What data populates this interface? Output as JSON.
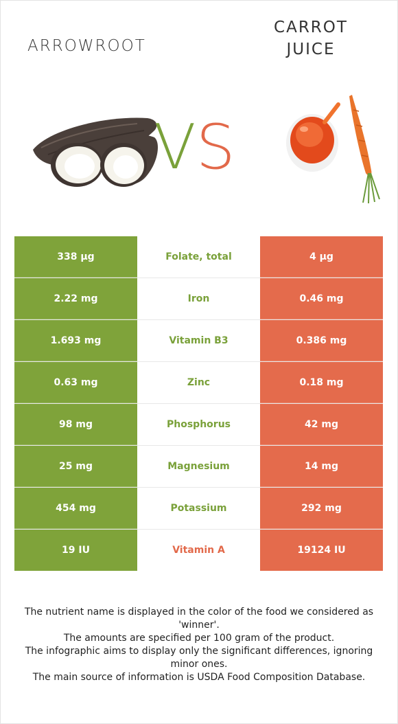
{
  "header": {
    "left_food": "ARROWROOT",
    "right_food_line1": "CARROT",
    "right_food_line2": "JUICE",
    "vs_v": "V",
    "vs_s": "S"
  },
  "colors": {
    "left_accent": "#7fa33a",
    "right_accent": "#e46b4c"
  },
  "rows": [
    {
      "left": "338 µg",
      "nutrient": "Folate, total",
      "right": "4 µg",
      "winner": "left"
    },
    {
      "left": "2.22 mg",
      "nutrient": "Iron",
      "right": "0.46 mg",
      "winner": "left"
    },
    {
      "left": "1.693 mg",
      "nutrient": "Vitamin B3",
      "right": "0.386 mg",
      "winner": "left"
    },
    {
      "left": "0.63 mg",
      "nutrient": "Zinc",
      "right": "0.18 mg",
      "winner": "left"
    },
    {
      "left": "98 mg",
      "nutrient": "Phosphorus",
      "right": "42 mg",
      "winner": "left"
    },
    {
      "left": "25 mg",
      "nutrient": "Magnesium",
      "right": "14 mg",
      "winner": "left"
    },
    {
      "left": "454 mg",
      "nutrient": "Potassium",
      "right": "292 mg",
      "winner": "left"
    },
    {
      "left": "19 IU",
      "nutrient": "Vitamin A",
      "right": "19124 IU",
      "winner": "right"
    }
  ],
  "footer": {
    "line1": "The nutrient name is displayed in the color of the food we considered as 'winner'.",
    "line2": "The amounts are specified per 100 gram of the product.",
    "line3": "The infographic aims to display only the significant differences, ignoring minor ones.",
    "line4": "The main source of information is USDA Food Composition Database."
  },
  "images": {
    "left_icon": "arrowroot-image",
    "right_icon": "carrot-juice-image"
  }
}
